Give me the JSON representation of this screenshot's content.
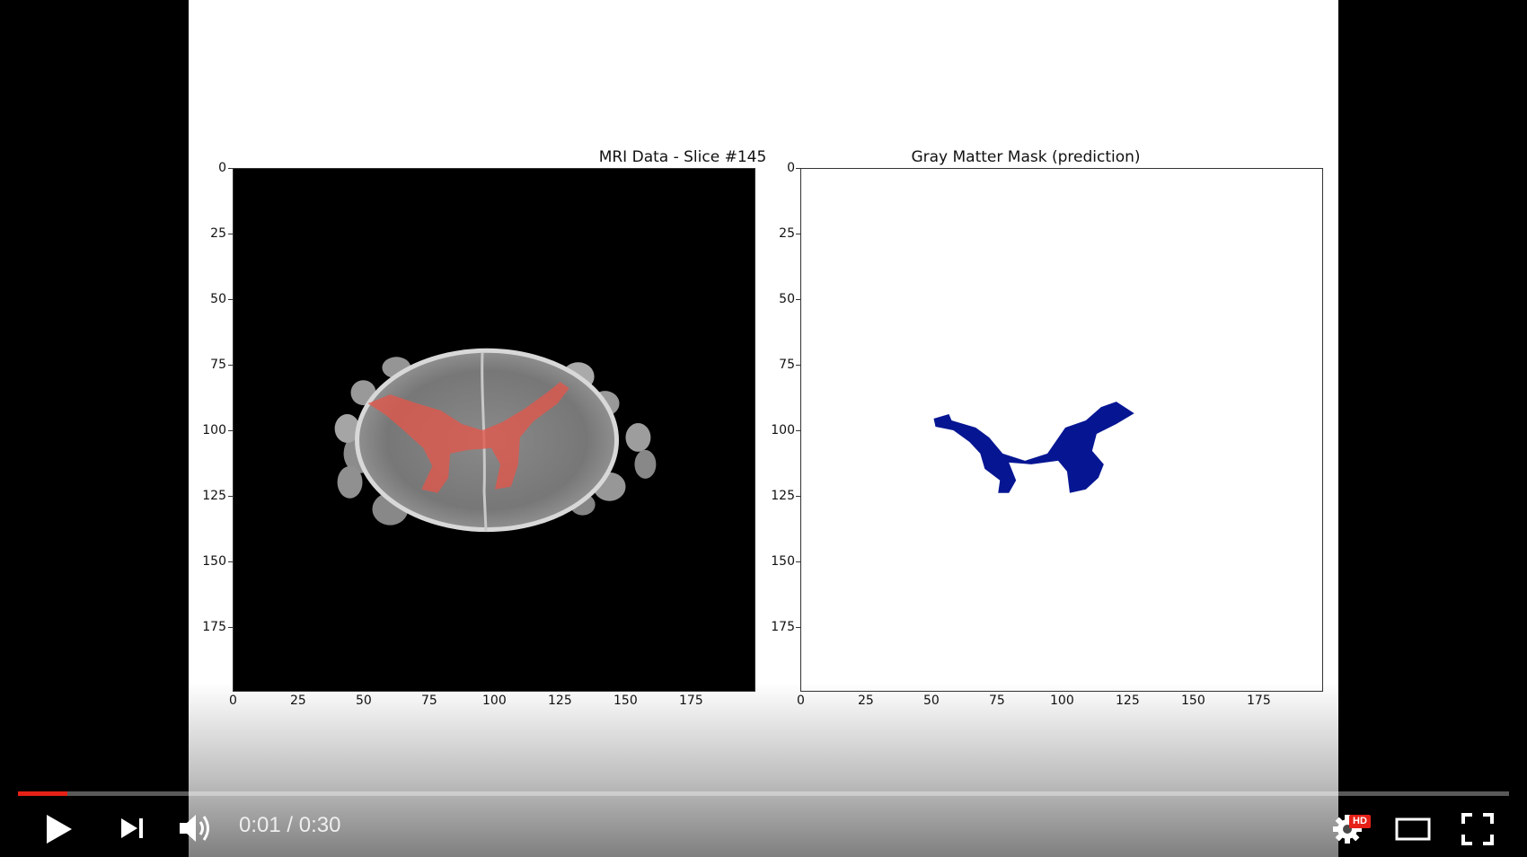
{
  "video": {
    "current_time": "0:01",
    "separator": " / ",
    "duration": "0:30",
    "progress_fraction": 0.0333,
    "hd_badge": "HD",
    "accent_color": "#e62117"
  },
  "controls": {
    "play_icon": "play-icon",
    "next_icon": "next-icon",
    "volume_icon": "volume-icon",
    "settings_icon": "gear-icon",
    "theater_icon": "theater-mode-icon",
    "fullscreen_icon": "fullscreen-icon"
  },
  "figure": {
    "left_plot": {
      "title": "MRI Data - Slice #145",
      "yticks": [
        "0",
        "25",
        "50",
        "75",
        "100",
        "125",
        "150",
        "175"
      ],
      "xticks": [
        "0",
        "25",
        "50",
        "75",
        "100",
        "125",
        "150",
        "175"
      ],
      "overlay_color": "#e2574c"
    },
    "right_plot": {
      "title": "Gray Matter Mask (prediction)",
      "yticks": [
        "0",
        "25",
        "50",
        "75",
        "100",
        "125",
        "150",
        "175"
      ],
      "xticks": [
        "0",
        "25",
        "50",
        "75",
        "100",
        "125",
        "150",
        "175"
      ],
      "mask_color": "#061693"
    }
  }
}
